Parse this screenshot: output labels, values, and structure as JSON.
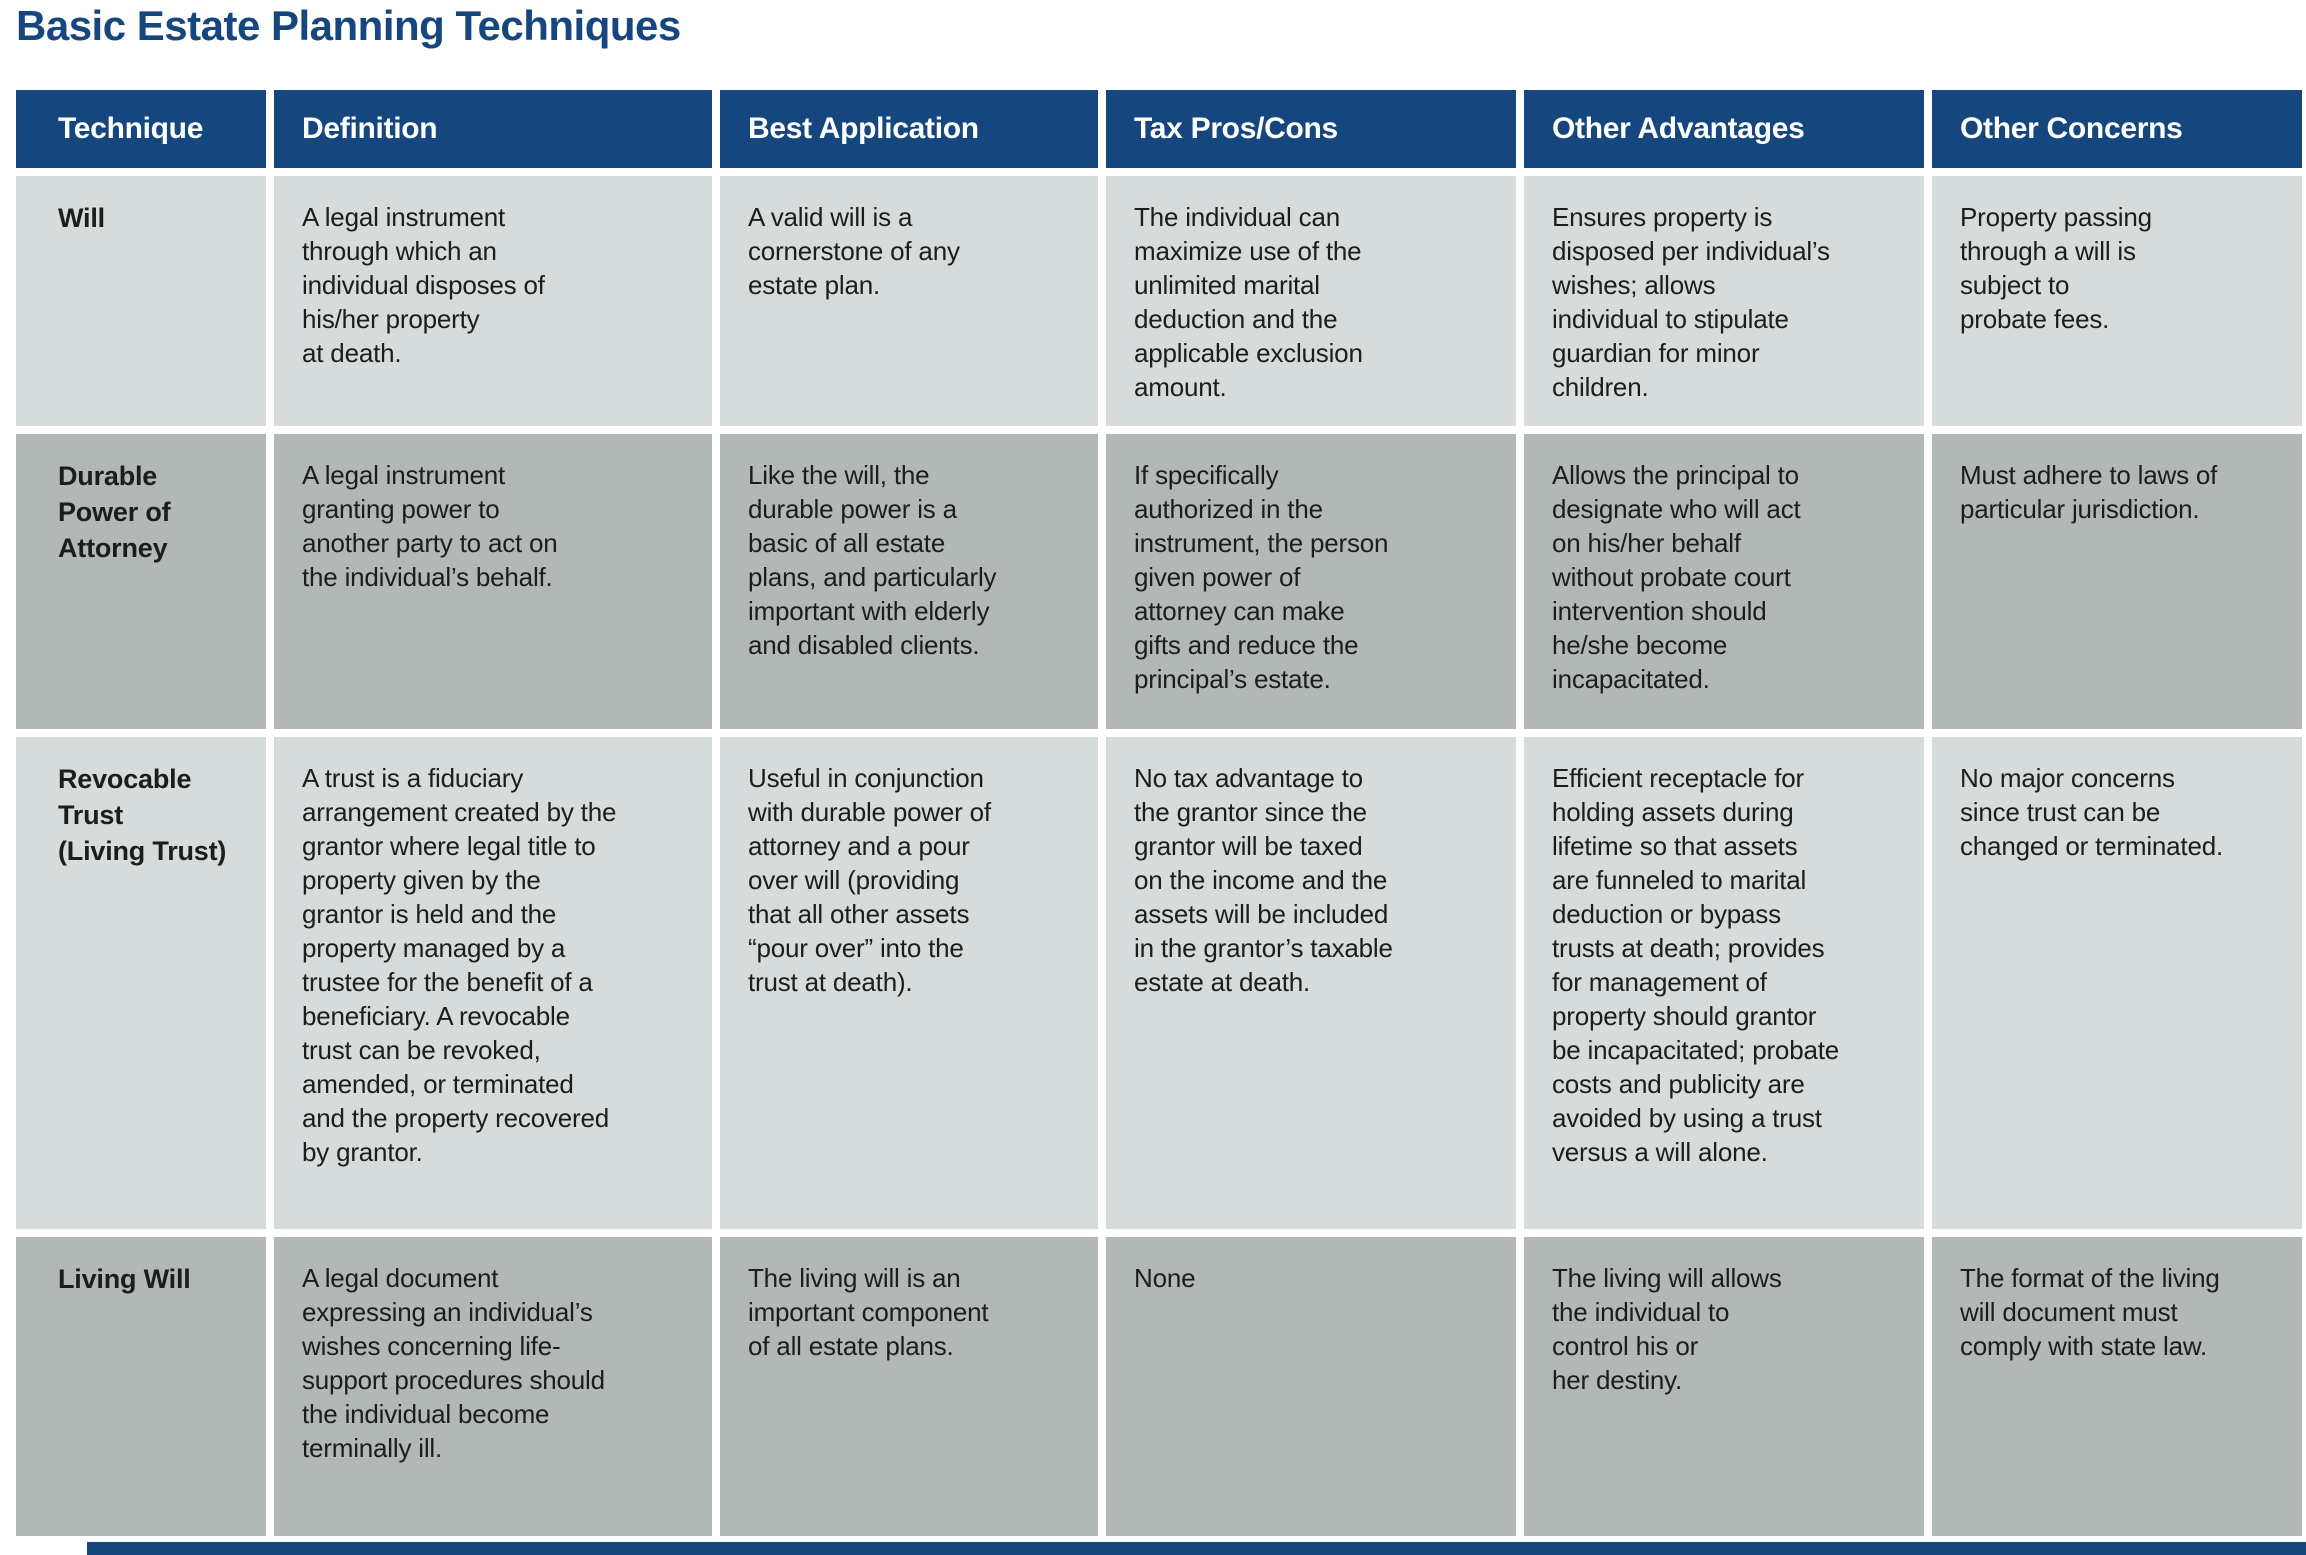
{
  "title": "Basic Estate Planning Techniques",
  "colors": {
    "navy": "#15477e",
    "row_light": "#d6dbdc",
    "row_dark": "#b1b8b5",
    "text": "#1d1d1b"
  },
  "table": {
    "columns": [
      "Technique",
      "Definition",
      "Best Application",
      "Tax Pros/Cons",
      "Other Advantages",
      "Other Concerns"
    ],
    "rows": [
      {
        "technique": "Will",
        "definition": "A legal instrument\nthrough which an\nindividual disposes of\nhis/her property\nat death.",
        "best_application": "A valid will is a\ncornerstone of any\nestate plan.",
        "tax_pros_cons": "The individual can\nmaximize use of the\nunlimited marital\ndeduction and the\napplicable exclusion\namount.",
        "other_advantages": "Ensures property is\ndisposed per individual’s\nwishes; allows\nindividual to stipulate\nguardian for minor\nchildren.",
        "other_concerns": "Property passing\nthrough a will is\nsubject to\nprobate fees."
      },
      {
        "technique": "Durable\nPower of\nAttorney",
        "definition": "A legal instrument\ngranting power to\nanother party to act on\nthe individual’s behalf.",
        "best_application": "Like the will, the\ndurable power is a\nbasic of all estate\nplans, and particularly\nimportant with elderly\nand disabled clients.",
        "tax_pros_cons": "If specifically\nauthorized in the\ninstrument, the person\ngiven power of\nattorney can make\ngifts and reduce the\nprincipal’s estate.",
        "other_advantages": "Allows the principal to\ndesignate who will act\non his/her behalf\nwithout probate court\nintervention should\nhe/she become\nincapacitated.",
        "other_concerns": "Must adhere to laws of\nparticular jurisdiction."
      },
      {
        "technique": "Revocable\nTrust\n(Living Trust)",
        "definition": "A trust is a fiduciary\narrangement created by the\ngrantor where legal title to\nproperty given by the\ngrantor is held and the\nproperty managed by a\ntrustee for the benefit of a\nbeneficiary. A revocable\ntrust can be revoked,\namended, or terminated\nand the property recovered\nby grantor.",
        "best_application": "Useful in conjunction\nwith durable power of\nattorney and a pour\nover will (providing\nthat all other assets\n“pour over” into the\ntrust at death).",
        "tax_pros_cons": "No tax advantage to\nthe grantor since the\ngrantor will be taxed\non the income and the\nassets will be included\nin the grantor’s taxable\nestate at death.",
        "other_advantages": "Efficient receptacle for\nholding assets during\nlifetime so that assets\nare funneled to marital\ndeduction or bypass\ntrusts at death; provides\nfor management of\nproperty should grantor\nbe incapacitated; probate\ncosts and publicity are\navoided by using a trust\nversus a will alone.",
        "other_concerns": "No major concerns\nsince trust can be\nchanged or terminated."
      },
      {
        "technique": "Living Will",
        "definition": "A legal document\nexpressing an individual’s\nwishes concerning life-\nsupport procedures should\nthe individual become\nterminally ill.",
        "best_application": "The living will is an\nimportant component\nof all estate plans.",
        "tax_pros_cons": "None",
        "other_advantages": "The living will allows\nthe individual to\ncontrol his or\nher destiny.",
        "other_concerns": "The format of the living\nwill document must\ncomply with state law."
      }
    ]
  }
}
